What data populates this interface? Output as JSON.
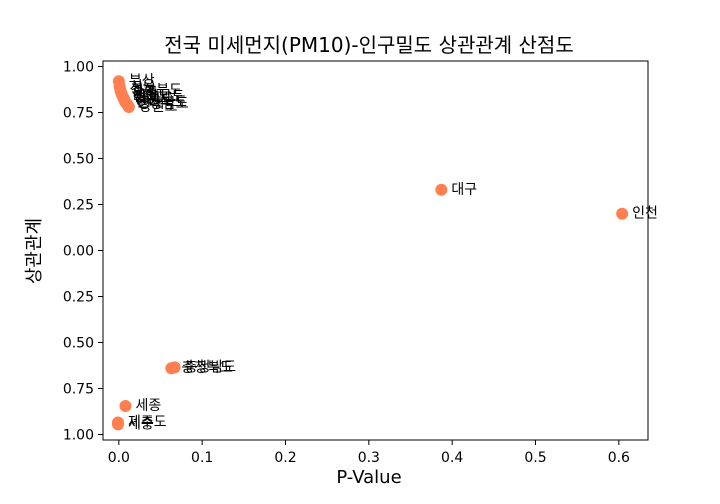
{
  "chart_data": {
    "type": "scatter",
    "title": "전국 미세먼지(PM10)-인구밀도 상관관계 산점도",
    "xlabel": "P-Value",
    "ylabel": "상관관계",
    "xlim": [
      -0.019,
      0.635
    ],
    "ylim": [
      -1.03,
      1.03
    ],
    "x_ticks": [
      "0.0",
      "0.1",
      "0.2",
      "0.3",
      "0.4",
      "0.5",
      "0.6"
    ],
    "x_tick_values": [
      0.0,
      0.1,
      0.2,
      0.3,
      0.4,
      0.5,
      0.6
    ],
    "y_ticks": [
      "1.00",
      "0.75",
      "0.50",
      "0.25",
      "0.00",
      "0.25",
      "0.50",
      "0.75",
      "1.00"
    ],
    "y_tick_values": [
      1.0,
      0.75,
      0.5,
      0.25,
      0.0,
      -0.25,
      -0.5,
      -0.75,
      -1.0
    ],
    "marker_color": "#FF7F50",
    "grid": false,
    "points": [
      {
        "label": "부산",
        "x": 0.0,
        "y": 0.92
      },
      {
        "label": "서울",
        "x": 0.001,
        "y": 0.89
      },
      {
        "label": "경상북도",
        "x": 0.002,
        "y": 0.87
      },
      {
        "label": "광주",
        "x": 0.003,
        "y": 0.855
      },
      {
        "label": "울산",
        "x": 0.004,
        "y": 0.845
      },
      {
        "label": "전라남도",
        "x": 0.005,
        "y": 0.835
      },
      {
        "label": "경기도",
        "x": 0.006,
        "y": 0.825
      },
      {
        "label": "강원도",
        "x": 0.007,
        "y": 0.815
      },
      {
        "label": "전라북도",
        "x": 0.008,
        "y": 0.805
      },
      {
        "label": "경상남도",
        "x": 0.01,
        "y": 0.795
      },
      {
        "label": "강원도",
        "x": 0.012,
        "y": 0.78
      },
      {
        "label": "대구",
        "x": 0.387,
        "y": 0.33
      },
      {
        "label": "인천",
        "x": 0.604,
        "y": 0.2
      },
      {
        "label": "충청북도",
        "x": 0.063,
        "y": -0.64
      },
      {
        "label": "충청남도",
        "x": 0.067,
        "y": -0.635
      },
      {
        "label": "세종",
        "x": 0.008,
        "y": -0.845
      },
      {
        "label": "제주도",
        "x": -0.001,
        "y": -0.935
      },
      {
        "label": "세종",
        "x": -0.001,
        "y": -0.945
      }
    ]
  }
}
